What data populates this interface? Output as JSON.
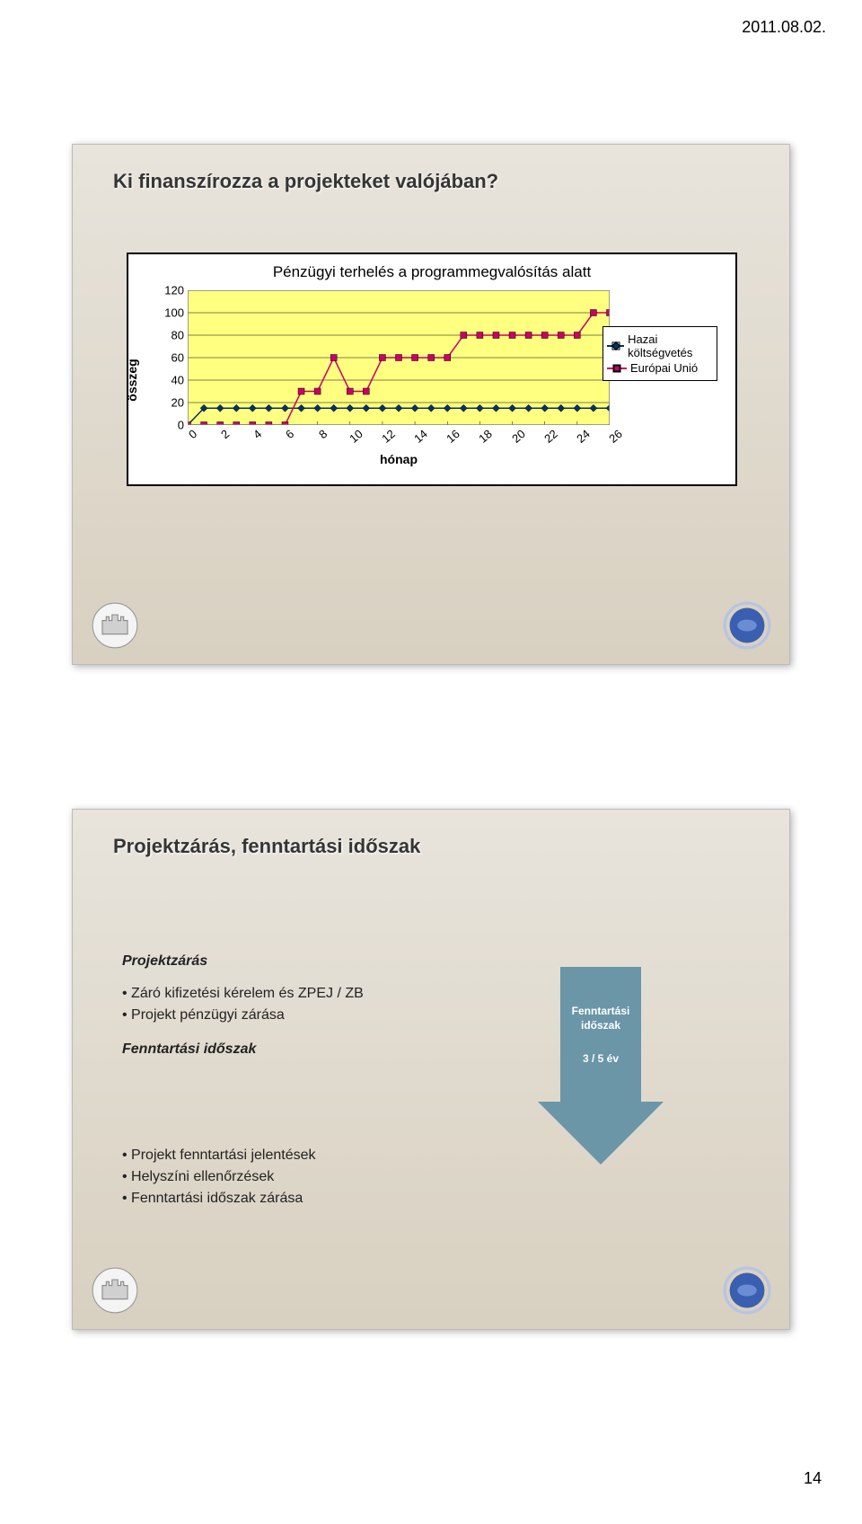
{
  "page": {
    "date": "2011.08.02.",
    "number": "14"
  },
  "slide1": {
    "title": "Ki finanszírozza a projekteket valójában?",
    "chart": {
      "title": "Pénzügyi terhelés a programmegvalósítás alatt",
      "ylabel": "összeg",
      "xlabel": "hónap",
      "ymin": 0,
      "ymax": 120,
      "ystep": 20,
      "yticks": [
        "0",
        "20",
        "40",
        "60",
        "80",
        "100",
        "120"
      ],
      "xticks": [
        "0",
        "2",
        "4",
        "6",
        "8",
        "10",
        "12",
        "14",
        "16",
        "18",
        "20",
        "22",
        "24",
        "26"
      ],
      "plot_bg": "#ffff80",
      "grid_color": "#000000",
      "series": [
        {
          "name": "Hazai költségvetés",
          "color": "#003366",
          "marker_fill": "#003366",
          "marker_shape": "diamond",
          "values": [
            0,
            15,
            15,
            15,
            15,
            15,
            15,
            15,
            15,
            15,
            15,
            15,
            15,
            15,
            15,
            15,
            15,
            15,
            15,
            15,
            15,
            15,
            15,
            15,
            15,
            15,
            15
          ]
        },
        {
          "name": "Európai Unió",
          "color": "#cc0066",
          "marker_fill": "#cc0066",
          "marker_shape": "square",
          "values": [
            0,
            0,
            0,
            0,
            0,
            0,
            0,
            30,
            30,
            60,
            30,
            30,
            60,
            60,
            60,
            60,
            60,
            80,
            80,
            80,
            80,
            80,
            80,
            80,
            80,
            100,
            100
          ]
        }
      ]
    }
  },
  "slide2": {
    "title": "Projektzárás, fenntartási időszak",
    "block1": {
      "heading": "Projektzárás",
      "items": [
        "Záró kifizetési kérelem és ZPEJ / ZB",
        "Projekt pénzügyi zárása"
      ]
    },
    "block2": {
      "heading": "Fenntartási időszak",
      "items": [
        "Projekt fenntartási jelentések",
        "Helyszíni ellenőrzések",
        "Fenntartási időszak zárása"
      ]
    },
    "arrow": {
      "color": "#6b96a8",
      "line1": "Fenntartási",
      "line2": "időszak",
      "line3": "3 / 5 év"
    }
  }
}
